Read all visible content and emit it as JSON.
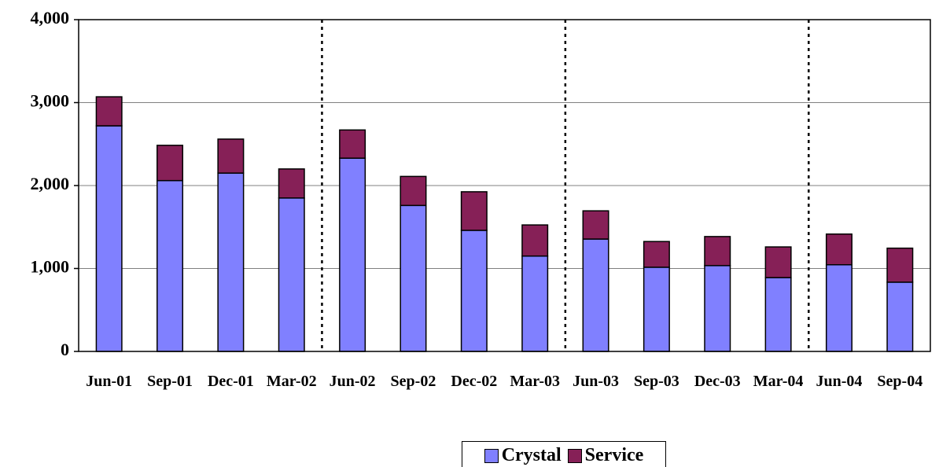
{
  "chart_data": {
    "type": "bar",
    "stacked": true,
    "categories": [
      "Jun-01",
      "Sep-01",
      "Dec-01",
      "Mar-02",
      "Jun-02",
      "Sep-02",
      "Dec-02",
      "Mar-03",
      "Jun-03",
      "Sep-03",
      "Dec-03",
      "Mar-04",
      "Jun-04",
      "Sep-04"
    ],
    "series": [
      {
        "name": "Crystal",
        "color": "#8080ff",
        "values": [
          2720,
          2060,
          2150,
          1850,
          2330,
          1760,
          1460,
          1150,
          1355,
          1015,
          1035,
          890,
          1045,
          835
        ]
      },
      {
        "name": "Service",
        "color": "#862057",
        "values": [
          350,
          425,
          410,
          350,
          340,
          350,
          465,
          375,
          340,
          310,
          350,
          370,
          370,
          410
        ]
      }
    ],
    "ylim": [
      0,
      4000
    ],
    "yticks": [
      0,
      {
        "value": 1000,
        "label": "1,000"
      },
      {
        "value": 2000,
        "label": "2,000"
      },
      {
        "value": 3000,
        "label": "3,000"
      },
      {
        "value": 4000,
        "label": "4,000"
      }
    ],
    "grid": true,
    "legend": "bottom"
  }
}
